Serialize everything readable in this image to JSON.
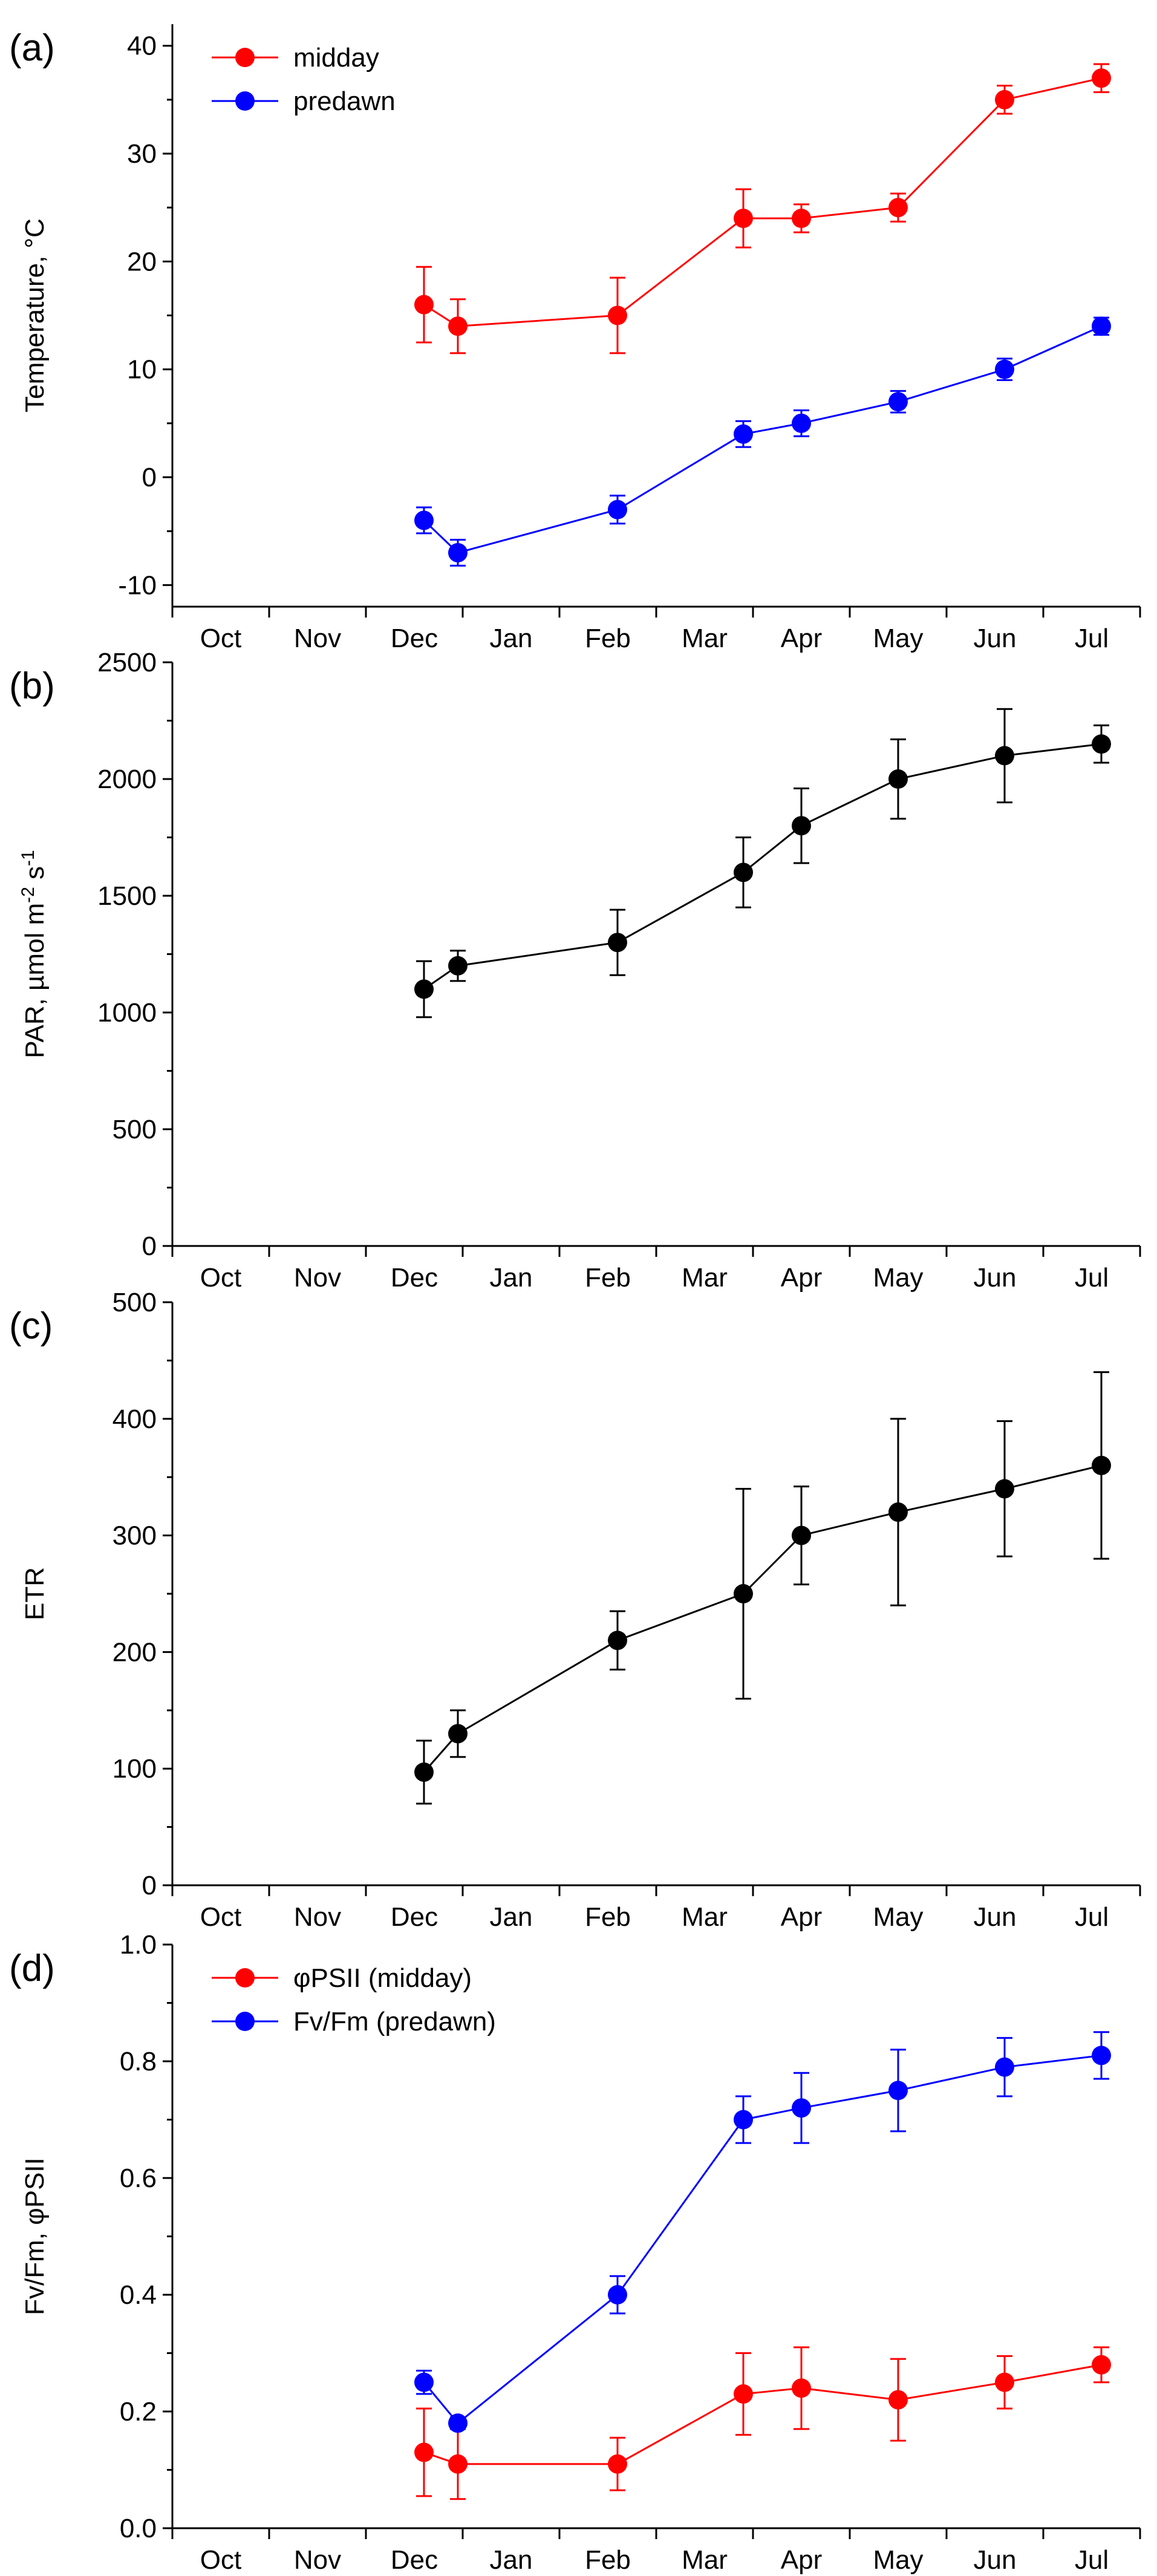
{
  "chart_data": [
    {
      "type": "line",
      "panel_label": "(a)",
      "ylabel": "Temperature, °C",
      "ylim": [
        -12,
        42
      ],
      "yticks": [
        -10,
        0,
        10,
        20,
        30,
        40
      ],
      "months": [
        "Oct",
        "Nov",
        "Dec",
        "Jan",
        "Feb",
        "Mar",
        "Apr",
        "May",
        "Jun",
        "Jul"
      ],
      "legend_position": "top-left",
      "series": [
        {
          "name": "midday",
          "color": "#ff0000",
          "x": [
            2.6,
            2.95,
            4.6,
            5.9,
            6.5,
            7.5,
            8.6,
            9.6
          ],
          "y": [
            16,
            14,
            15,
            24,
            24,
            25,
            35,
            37
          ],
          "err": [
            3.5,
            2.5,
            3.5,
            2.7,
            1.3,
            1.3,
            1.3,
            1.3
          ]
        },
        {
          "name": "predawn",
          "color": "#0000ff",
          "x": [
            2.6,
            2.95,
            4.6,
            5.9,
            6.5,
            7.5,
            8.6,
            9.6
          ],
          "y": [
            -4,
            -7,
            -3,
            4,
            5,
            7,
            10,
            14
          ],
          "err": [
            1.2,
            1.2,
            1.3,
            1.2,
            1.2,
            1.0,
            1.0,
            0.8
          ]
        }
      ]
    },
    {
      "type": "line",
      "panel_label": "(b)",
      "ylabel": "PAR, µmol m-2 s-1",
      "ylabel_parts": {
        "main": "PAR, µmol m",
        "sup1": "-2",
        "mid": " s",
        "sup2": "-1"
      },
      "ylim": [
        0,
        2500
      ],
      "yticks": [
        0,
        500,
        1000,
        1500,
        2000,
        2500
      ],
      "months": [
        "Oct",
        "Nov",
        "Dec",
        "Jan",
        "Feb",
        "Mar",
        "Apr",
        "May",
        "Jun",
        "Jul"
      ],
      "series": [
        {
          "name": "PAR",
          "color": "#000000",
          "x": [
            2.6,
            2.95,
            4.6,
            5.9,
            6.5,
            7.5,
            8.6,
            9.6
          ],
          "y": [
            1100,
            1200,
            1300,
            1600,
            1800,
            2000,
            2100,
            2150
          ],
          "err": [
            120,
            65,
            140,
            150,
            160,
            170,
            200,
            80
          ]
        }
      ]
    },
    {
      "type": "line",
      "panel_label": "(c)",
      "ylabel": "ETR",
      "ylim": [
        0,
        500
      ],
      "yticks": [
        0,
        100,
        200,
        300,
        400,
        500
      ],
      "months": [
        "Oct",
        "Nov",
        "Dec",
        "Jan",
        "Feb",
        "Mar",
        "Apr",
        "May",
        "Jun",
        "Jul"
      ],
      "series": [
        {
          "name": "ETR",
          "color": "#000000",
          "x": [
            2.6,
            2.95,
            4.6,
            5.9,
            6.5,
            7.5,
            8.6,
            9.6
          ],
          "y": [
            97,
            130,
            210,
            250,
            300,
            320,
            340,
            360
          ],
          "err": [
            27,
            20,
            25,
            90,
            42,
            80,
            58,
            80
          ]
        }
      ]
    },
    {
      "type": "line",
      "panel_label": "(d)",
      "ylabel": "Fv/Fm,  φPSII",
      "ylim": [
        0,
        1.0
      ],
      "yticks": [
        0.0,
        0.2,
        0.4,
        0.6,
        0.8,
        1.0
      ],
      "ytick_labels": [
        "0.0",
        "0.2",
        "0.4",
        "0.6",
        "0.8",
        "1.0"
      ],
      "months": [
        "Oct",
        "Nov",
        "Dec",
        "Jan",
        "Feb",
        "Mar",
        "Apr",
        "May",
        "Jun",
        "Jul"
      ],
      "legend_position": "top-left",
      "series": [
        {
          "name": "φPSII (midday)",
          "color": "#ff0000",
          "x": [
            2.6,
            2.95,
            4.6,
            5.9,
            6.5,
            7.5,
            8.6,
            9.6
          ],
          "y": [
            0.13,
            0.11,
            0.11,
            0.23,
            0.24,
            0.22,
            0.25,
            0.28
          ],
          "err": [
            0.075,
            0.06,
            0.045,
            0.07,
            0.07,
            0.07,
            0.045,
            0.03
          ]
        },
        {
          "name": "Fv/Fm (predawn)",
          "color": "#0000ff",
          "x": [
            2.6,
            2.95,
            4.6,
            5.9,
            6.5,
            7.5,
            8.6,
            9.6
          ],
          "y": [
            0.25,
            0.18,
            0.4,
            0.7,
            0.72,
            0.75,
            0.79,
            0.81
          ],
          "err": [
            0.02,
            0.01,
            0.032,
            0.04,
            0.06,
            0.07,
            0.05,
            0.04
          ]
        }
      ]
    }
  ]
}
